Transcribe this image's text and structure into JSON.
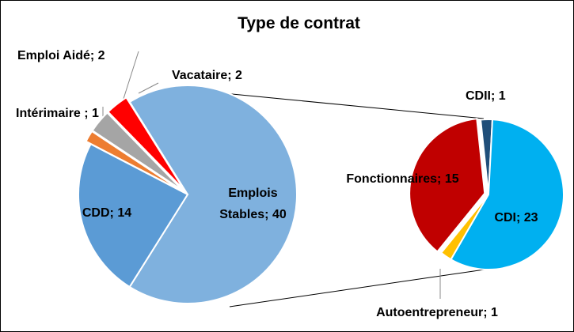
{
  "chart_data": [
    {
      "type": "pie",
      "title": "Type de contrat",
      "categories": [
        "Emplois Stables",
        "CDD",
        "Intérimaire",
        "Emploi Aidé",
        "Vacataire"
      ],
      "values": [
        40,
        14,
        1,
        2,
        2
      ],
      "value_labels": [
        "Emplois Stables; 40",
        "CDD; 14",
        "Intérimaire ; 1",
        "Emploi Aidé; 2",
        "Vacataire; 2"
      ],
      "colors": [
        "#7fb1de",
        "#5b9bd5",
        "#ed7d31",
        "#a5a5a5",
        "#ff0000"
      ]
    },
    {
      "type": "pie",
      "categories": [
        "CDII",
        "CDI",
        "Autoentrepreneur",
        "Fonctionnaires"
      ],
      "values": [
        1,
        23,
        1,
        15
      ],
      "value_labels": [
        "CDII; 1",
        "CDI; 23",
        "Autoentrepreneur; 1",
        "Fonctionnaires; 15"
      ],
      "colors": [
        "#1f4e79",
        "#00b0f0",
        "#ffc000",
        "#c00000"
      ]
    }
  ]
}
